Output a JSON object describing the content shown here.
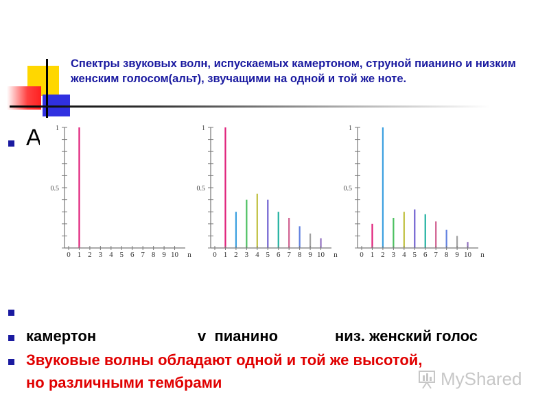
{
  "slide": {
    "title": "Спектры звуковых волн, испускаемых камертоном, струной пианино и низким женским голосом(альт), звучащими на одной и той же ноте.",
    "partial_text": "А",
    "bullets": [
      {
        "text": "",
        "color": "#000000"
      },
      {
        "parts": [
          "камертон",
          "v  пианино",
          "низ. женский голос"
        ],
        "color": "#000000"
      },
      {
        "lines": [
          "Звуковые волны обладают одной и той же высотой,",
          "но различными тембрами"
        ],
        "color": "#e00000"
      }
    ],
    "watermark": "MyShared"
  },
  "chart_data": [
    {
      "type": "bar",
      "x": [
        0,
        1,
        2,
        3,
        4,
        5,
        6,
        7,
        8,
        9,
        10
      ],
      "values": [
        0,
        1,
        0,
        0,
        0,
        0,
        0,
        0,
        0,
        0,
        0
      ],
      "xlabel": "n",
      "yticks": [
        "1",
        "0.5"
      ],
      "ylim": [
        0,
        1
      ]
    },
    {
      "type": "bar",
      "x": [
        0,
        1,
        2,
        3,
        4,
        5,
        6,
        7,
        8,
        9,
        10
      ],
      "values": [
        0,
        1,
        0.3,
        0.4,
        0.45,
        0.4,
        0.3,
        0.25,
        0.18,
        0.12,
        0.08
      ],
      "xlabel": "n",
      "yticks": [
        "1",
        "0.5"
      ],
      "ylim": [
        0,
        1
      ]
    },
    {
      "type": "bar",
      "x": [
        0,
        1,
        2,
        3,
        4,
        5,
        6,
        7,
        8,
        9,
        10
      ],
      "values": [
        0,
        0.2,
        1,
        0.25,
        0.3,
        0.32,
        0.28,
        0.22,
        0.15,
        0.1,
        0.05
      ],
      "xlabel": "n",
      "yticks": [
        "1",
        "0.5"
      ],
      "ylim": [
        0,
        1
      ]
    }
  ]
}
